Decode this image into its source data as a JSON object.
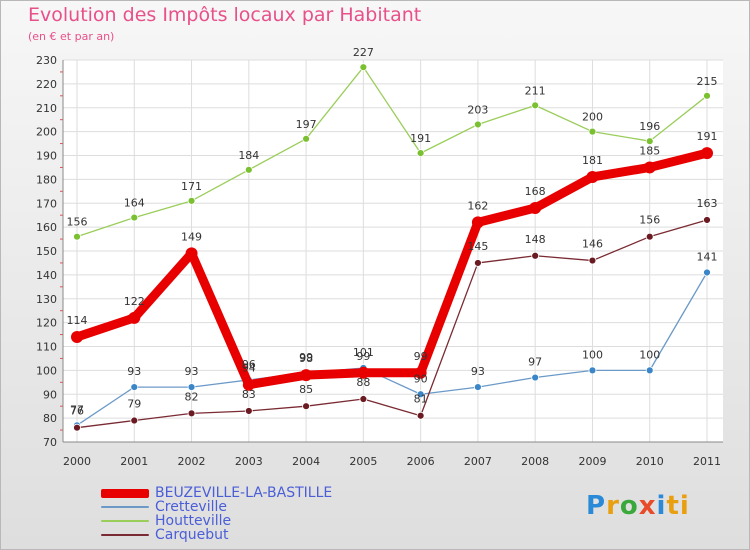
{
  "logo": {
    "text": "Proxiti",
    "letters": [
      "P",
      "r",
      "o",
      "x",
      "i",
      "ti"
    ]
  },
  "chart_data": {
    "type": "line",
    "title": "Evolution des Impôts locaux par Habitant",
    "subtitle": "(en € et par an)",
    "xlabel": "",
    "ylabel": "",
    "ylim": [
      70,
      230
    ],
    "yticks": [
      70,
      80,
      90,
      100,
      110,
      120,
      130,
      140,
      150,
      160,
      170,
      180,
      190,
      200,
      210,
      220,
      230
    ],
    "x": [
      "2000",
      "2001",
      "2002",
      "2003",
      "2004",
      "2005",
      "2006",
      "2007",
      "2008",
      "2009",
      "2010",
      "2011"
    ],
    "grid": true,
    "legend_position": "bottom-left",
    "series": [
      {
        "name": "BEUZEVILLE-LA-BASTILLE",
        "color": "#e80000",
        "marker": "#e80000",
        "thick": true,
        "values": [
          114,
          122,
          149,
          94,
          98,
          99,
          99,
          162,
          168,
          181,
          185,
          191
        ]
      },
      {
        "name": "Cretteville",
        "color": "#6b9ac8",
        "marker": "#3a86c8",
        "thick": false,
        "values": [
          77,
          93,
          93,
          96,
          99,
          101,
          90,
          93,
          97,
          100,
          100,
          141
        ]
      },
      {
        "name": "Houtteville",
        "color": "#9acd5a",
        "marker": "#7ac030",
        "thick": false,
        "values": [
          156,
          164,
          171,
          184,
          197,
          227,
          191,
          203,
          211,
          200,
          196,
          215
        ]
      },
      {
        "name": "Carquebut",
        "color": "#7a2a32",
        "marker": "#6a1a20",
        "thick": false,
        "values": [
          76,
          79,
          82,
          83,
          85,
          88,
          81,
          145,
          148,
          146,
          156,
          163
        ]
      }
    ],
    "data_labels": [
      [
        "114",
        "122",
        "149",
        "94",
        "98",
        "99",
        "99",
        "162",
        "168",
        "181",
        "185",
        "191"
      ],
      [
        "77",
        "93",
        "93",
        "96",
        "99",
        "101",
        "90",
        "93",
        "97",
        "100",
        "100",
        "141"
      ],
      [
        "156",
        "164",
        "171",
        "184",
        "197",
        "227",
        "191",
        "203",
        "211",
        "200",
        "196",
        "215"
      ],
      [
        "76",
        "79",
        "82",
        "83",
        "85",
        "88",
        "81",
        "145",
        "148",
        "146",
        "156",
        "163"
      ]
    ]
  }
}
